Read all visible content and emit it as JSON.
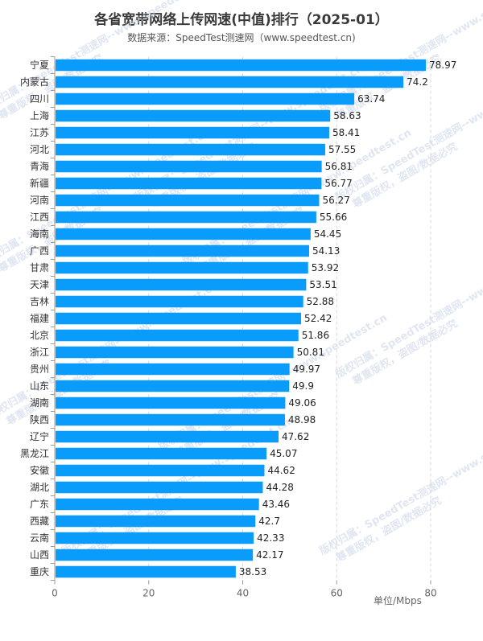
{
  "chart_data": {
    "type": "bar",
    "orientation": "horizontal",
    "title": "各省宽带网络上传网速(中值)排行（2025-01）",
    "subtitle": "数据来源：SpeedTest测速网（www.speedtest.cn)",
    "unit_label": "单位/Mbps",
    "categories": [
      "宁夏",
      "内蒙古",
      "四川",
      "上海",
      "江苏",
      "河北",
      "青海",
      "新疆",
      "河南",
      "江西",
      "海南",
      "广西",
      "甘肃",
      "天津",
      "吉林",
      "福建",
      "北京",
      "浙江",
      "贵州",
      "山东",
      "湖南",
      "陕西",
      "辽宁",
      "黑龙江",
      "安徽",
      "湖北",
      "广东",
      "西藏",
      "云南",
      "山西",
      "重庆"
    ],
    "values": [
      78.97,
      74.2,
      63.74,
      58.63,
      58.41,
      57.55,
      56.81,
      56.77,
      56.27,
      55.66,
      54.45,
      54.13,
      53.92,
      53.51,
      52.88,
      52.42,
      51.86,
      50.81,
      49.97,
      49.9,
      49.06,
      48.98,
      47.62,
      45.07,
      44.62,
      44.28,
      43.46,
      42.7,
      42.33,
      42.17,
      38.53
    ],
    "value_labels": [
      "78.97",
      "74.2",
      "63.74",
      "58.63",
      "58.41",
      "57.55",
      "56.81",
      "56.77",
      "56.27",
      "55.66",
      "54.45",
      "54.13",
      "53.92",
      "53.51",
      "52.88",
      "52.42",
      "51.86",
      "50.81",
      "49.97",
      "49.9",
      "49.06",
      "48.98",
      "47.62",
      "45.07",
      "44.62",
      "44.28",
      "43.46",
      "42.7",
      "42.33",
      "42.17",
      "38.53"
    ],
    "xlim": [
      0,
      80
    ],
    "xticks": [
      0,
      20,
      40,
      60,
      80
    ],
    "xtick_labels": [
      "0",
      "20",
      "40",
      "60",
      "80"
    ],
    "grid": "vertical dashed",
    "bar_color": "#0a9cfa"
  },
  "watermarks": {
    "line1": "版权归属：SpeedTest测速网--www.speedtest.cn",
    "line2": "尊重版权，盗图/数据必究"
  }
}
